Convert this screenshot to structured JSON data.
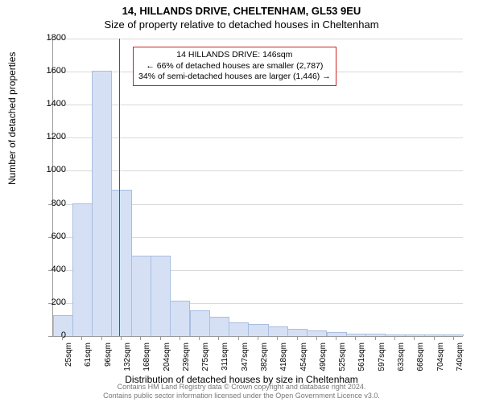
{
  "title_line1": "14, HILLANDS DRIVE, CHELTENHAM, GL53 9EU",
  "title_line2": "Size of property relative to detached houses in Cheltenham",
  "y_axis_label": "Number of detached properties",
  "x_axis_label": "Distribution of detached houses by size in Cheltenham",
  "footer_line1": "Contains HM Land Registry data © Crown copyright and database right 2024.",
  "footer_line2": "Contains public sector information licensed under the Open Government Licence v3.0.",
  "chart": {
    "type": "histogram",
    "ylim": [
      0,
      1800
    ],
    "ytick_step": 200,
    "x_labels": [
      "25sqm",
      "61sqm",
      "96sqm",
      "132sqm",
      "168sqm",
      "204sqm",
      "239sqm",
      "275sqm",
      "311sqm",
      "347sqm",
      "382sqm",
      "418sqm",
      "454sqm",
      "490sqm",
      "525sqm",
      "561sqm",
      "597sqm",
      "633sqm",
      "668sqm",
      "704sqm",
      "740sqm"
    ],
    "values": [
      120,
      800,
      1600,
      880,
      480,
      480,
      210,
      150,
      110,
      80,
      70,
      55,
      40,
      30,
      20,
      10,
      10,
      5,
      5,
      5,
      5
    ],
    "bar_fill": "#d6e0f5",
    "bar_stroke": "#a8bde0",
    "grid_color": "#d9d9d9",
    "axis_color": "#999999",
    "background": "#ffffff",
    "ref_line_color": "#cc2222",
    "ref_line_index": 3.4,
    "annotation": {
      "line1": "14 HILLANDS DRIVE: 146sqm",
      "line2": "← 66% of detached houses are smaller (2,787)",
      "line3": "34% of semi-detached houses are larger (1,446) →",
      "border_color": "#cc2222"
    }
  }
}
